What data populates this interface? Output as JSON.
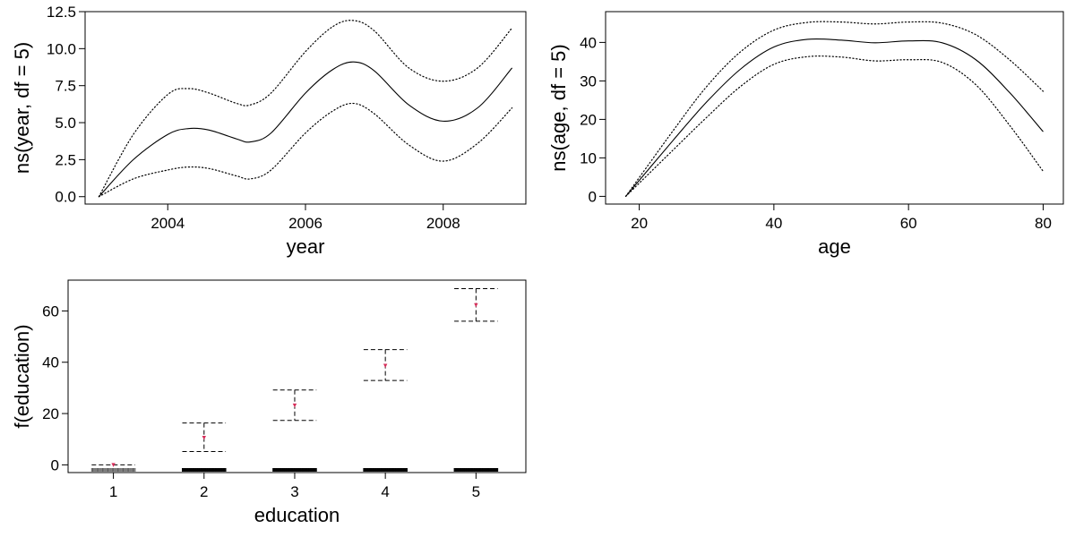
{
  "chart_data": [
    {
      "type": "line",
      "xlabel": "year",
      "ylabel": "ns(year, df = 5)",
      "xlim": [
        2002.8,
        2009.2
      ],
      "ylim": [
        -0.5,
        12.5
      ],
      "xticks": [
        2004,
        2006,
        2008
      ],
      "yticks": [
        0.0,
        2.5,
        5.0,
        7.5,
        10.0,
        12.5
      ],
      "ytick_labels": [
        "0.0",
        "2.5",
        "5.0",
        "7.5",
        "10.0",
        "12.5"
      ],
      "x": [
        2003,
        2003.5,
        2004,
        2004.3,
        2004.6,
        2005,
        2005.2,
        2005.5,
        2006,
        2006.4,
        2006.7,
        2007,
        2007.5,
        2008,
        2008.5,
        2009
      ],
      "series": [
        {
          "style": "solid",
          "values": [
            0,
            2.5,
            4.2,
            4.6,
            4.5,
            3.9,
            3.7,
            4.3,
            7.0,
            8.6,
            9.1,
            8.5,
            6.2,
            5.1,
            6.0,
            8.7
          ]
        },
        {
          "style": "dotted",
          "values": [
            0,
            4.2,
            6.9,
            7.3,
            7.0,
            6.3,
            6.2,
            7.0,
            9.8,
            11.5,
            11.9,
            11.2,
            8.7,
            7.8,
            8.7,
            11.4
          ]
        },
        {
          "style": "dotted",
          "values": [
            0,
            1.2,
            1.8,
            2.0,
            1.9,
            1.4,
            1.2,
            1.8,
            4.3,
            5.8,
            6.3,
            5.6,
            3.5,
            2.4,
            3.6,
            6.0
          ]
        }
      ]
    },
    {
      "type": "line",
      "xlabel": "age",
      "ylabel": "ns(age, df = 5)",
      "xlim": [
        15,
        83
      ],
      "ylim": [
        -2,
        48
      ],
      "xticks": [
        20,
        40,
        60,
        80
      ],
      "yticks": [
        0,
        10,
        20,
        30,
        40
      ],
      "ytick_labels": [
        "0",
        "10",
        "20",
        "30",
        "40"
      ],
      "x": [
        18,
        25,
        30,
        35,
        40,
        45,
        50,
        55,
        60,
        65,
        70,
        75,
        80
      ],
      "series": [
        {
          "style": "solid",
          "values": [
            0,
            14.5,
            24.5,
            33,
            38.8,
            40.8,
            40.6,
            39.9,
            40.4,
            39.9,
            35.5,
            27,
            16.8
          ]
        },
        {
          "style": "dotted",
          "values": [
            0,
            17,
            28.5,
            37.5,
            43.2,
            45.2,
            45.3,
            44.8,
            45.3,
            45,
            42,
            35.5,
            27.3
          ]
        },
        {
          "style": "dotted",
          "values": [
            0,
            12,
            20.5,
            28.5,
            34.3,
            36.3,
            36.2,
            35.2,
            35.5,
            34.8,
            29,
            18.5,
            6.5
          ]
        }
      ]
    },
    {
      "type": "errorbar",
      "xlabel": "education",
      "ylabel": "f(education)",
      "categories": [
        "1",
        "2",
        "3",
        "4",
        "5"
      ],
      "xlim": [
        0.5,
        5.55
      ],
      "ylim": [
        -3,
        72
      ],
      "yticks": [
        0,
        20,
        40,
        60
      ],
      "ytick_labels": [
        "0",
        "20",
        "40",
        "60"
      ],
      "values": [
        0,
        10.6,
        23.2,
        38.7,
        62.3
      ],
      "upper": [
        0,
        16.3,
        29.2,
        44.9,
        68.7
      ],
      "lower": [
        0,
        5.2,
        17.3,
        32.9,
        56.0
      ],
      "point_color": "#d62d5a",
      "rug": true
    }
  ]
}
